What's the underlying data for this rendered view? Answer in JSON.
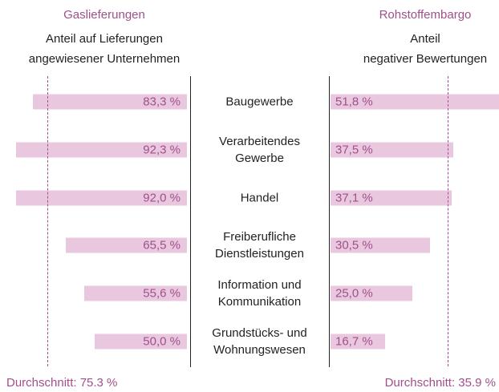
{
  "chart_data": {
    "type": "butterfly",
    "categories": [
      "Baugewerbe",
      "Verarbeitendes\nGewerbe",
      "Handel",
      "Freiberufliche\nDienstleistungen",
      "Information und\nKommunikation",
      "Grundstücks- und\nWohnungswesen"
    ],
    "series": [
      {
        "name": "Gaslieferungen",
        "subtitle": "Anteil auf Lieferungen\nangewiesener Unternehmen",
        "color": "#e9c8df",
        "label_color": "#a0508a",
        "values": [
          83.3,
          92.3,
          92.0,
          65.5,
          55.6,
          50.0
        ],
        "value_labels": [
          "83,3 %",
          "92,3 %",
          "92,0 %",
          "65,5 %",
          "55,6 %",
          "50,0 %"
        ],
        "xlim": [
          0,
          100
        ],
        "average": 75.3,
        "average_label": "Durchschnitt: 75.3 %"
      },
      {
        "name": "Rohstoffembargo",
        "subtitle": "Anteil\nnegativer Bewertungen",
        "color": "#e9c8df",
        "label_color": "#a0508a",
        "values": [
          51.8,
          37.5,
          37.1,
          30.5,
          25.0,
          16.7
        ],
        "value_labels": [
          "51,8 %",
          "37,5 %",
          "37,1 %",
          "30,5 %",
          "25,0 %",
          "16,7 %"
        ],
        "xlim": [
          0,
          52
        ],
        "average": 35.9,
        "average_label": "Durchschnitt: 35.9 %"
      }
    ]
  }
}
